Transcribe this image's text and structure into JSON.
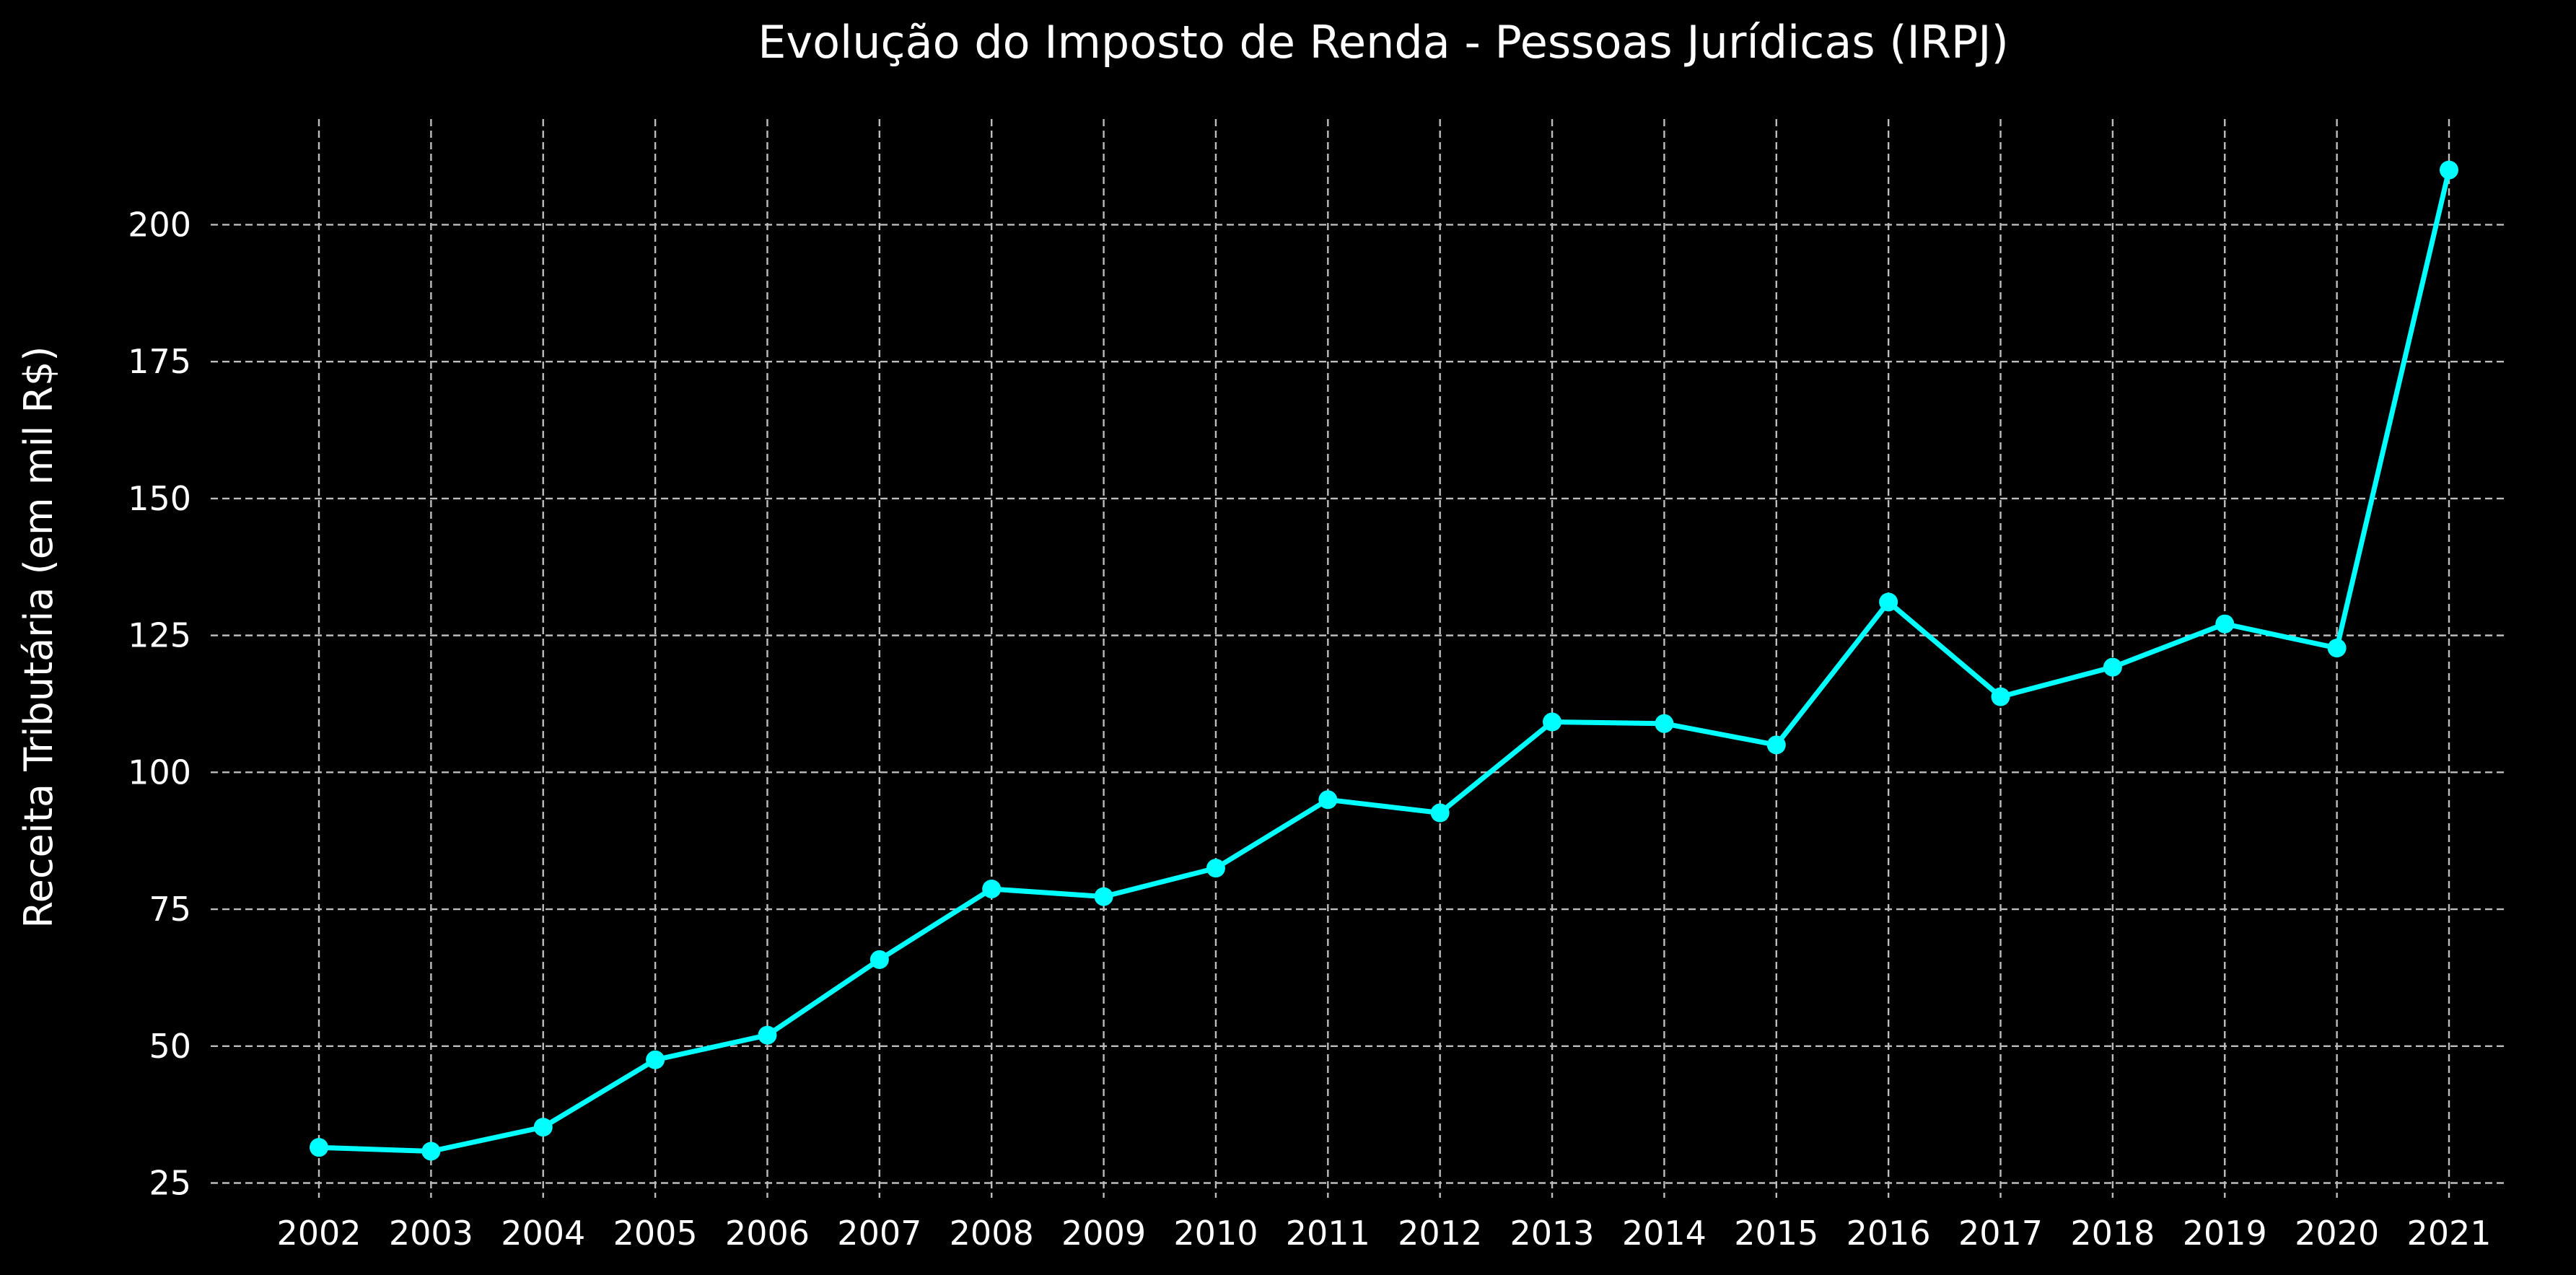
{
  "chart_data": {
    "type": "line",
    "title": "Evolução do Imposto de Renda - Pessoas Jurídicas (IRPJ)",
    "xlabel": "",
    "ylabel": "Receita Tributária (em mil R$)",
    "x": [
      "2002",
      "2003",
      "2004",
      "2005",
      "2006",
      "2007",
      "2008",
      "2009",
      "2010",
      "2011",
      "2012",
      "2013",
      "2014",
      "2015",
      "2016",
      "2017",
      "2018",
      "2019",
      "2020",
      "2021"
    ],
    "series": [
      {
        "values": [
          31.5,
          30.8,
          35.2,
          47.5,
          52.0,
          65.8,
          78.7,
          77.3,
          82.5,
          95.0,
          92.6,
          109.2,
          108.9,
          105.0,
          131.1,
          113.8,
          119.2,
          127.1,
          122.7,
          210.0
        ],
        "color": "#00ffff"
      }
    ],
    "yticks": [
      25,
      50,
      75,
      100,
      125,
      150,
      175,
      200
    ],
    "ylim": [
      22.3,
      219.3
    ],
    "grid": true,
    "background": "#000000",
    "text_color": "#ffffff",
    "grid_color": "#bdbdbd"
  }
}
